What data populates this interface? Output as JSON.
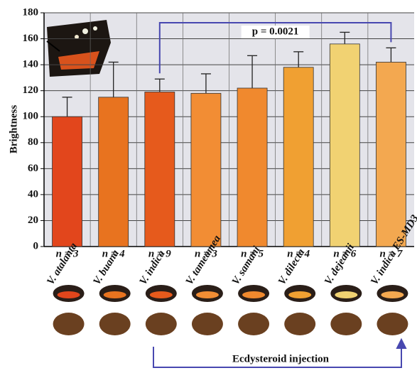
{
  "chart_data": {
    "type": "bar",
    "ylabel": "Brightness",
    "categories": [
      "V. atalanta",
      "V. buana",
      "V. indica",
      "V. tameamea",
      "V. samani",
      "V. dilecta",
      "V. dejeanii",
      "V. indica ES-MD3"
    ],
    "values": [
      100,
      115,
      119,
      118,
      122,
      138,
      156,
      142
    ],
    "errors": [
      15,
      27,
      10,
      15,
      25,
      12,
      9,
      11
    ],
    "colors": [
      "#e2461c",
      "#e8731f",
      "#e65a1c",
      "#f28d34",
      "#f0892e",
      "#f0a032",
      "#f1d272",
      "#f3a850"
    ],
    "sample_sizes": [
      "n = 3",
      "n = 4",
      "n = 9",
      "n = 3",
      "n = 5",
      "n = 4",
      "n = 6",
      "n = 7"
    ],
    "ylim": [
      0,
      180
    ],
    "yticks": [
      0,
      20,
      40,
      60,
      80,
      100,
      120,
      140,
      160,
      180
    ],
    "grid": true,
    "annotation": "p = 0.0021",
    "bracket_label": "Ecdysteroid injection"
  }
}
